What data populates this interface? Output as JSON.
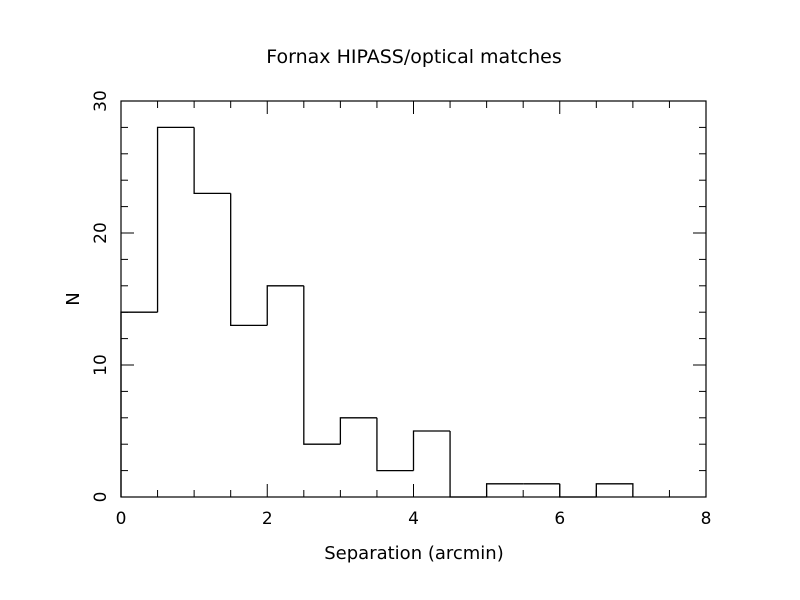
{
  "chart_data": {
    "type": "histogram",
    "title": "Fornax HIPASS/optical matches",
    "xlabel": "Separation (arcmin)",
    "ylabel": "N",
    "xlim": [
      0,
      8
    ],
    "ylim": [
      0,
      30
    ],
    "bin_width": 0.5,
    "bin_edges": [
      0,
      0.5,
      1,
      1.5,
      2,
      2.5,
      3,
      3.5,
      4,
      4.5,
      5,
      5.5,
      6,
      6.5,
      7
    ],
    "counts": [
      14,
      28,
      23,
      13,
      16,
      4,
      6,
      2,
      5,
      0,
      1,
      1,
      0,
      1
    ],
    "x_major_ticks": [
      0,
      2,
      4,
      6,
      8
    ],
    "x_minor_step": 0.5,
    "y_major_ticks": [
      0,
      10,
      20,
      30
    ],
    "y_minor_step": 2,
    "grid": false,
    "colors": {
      "line": "#000000",
      "background": "#ffffff"
    }
  }
}
